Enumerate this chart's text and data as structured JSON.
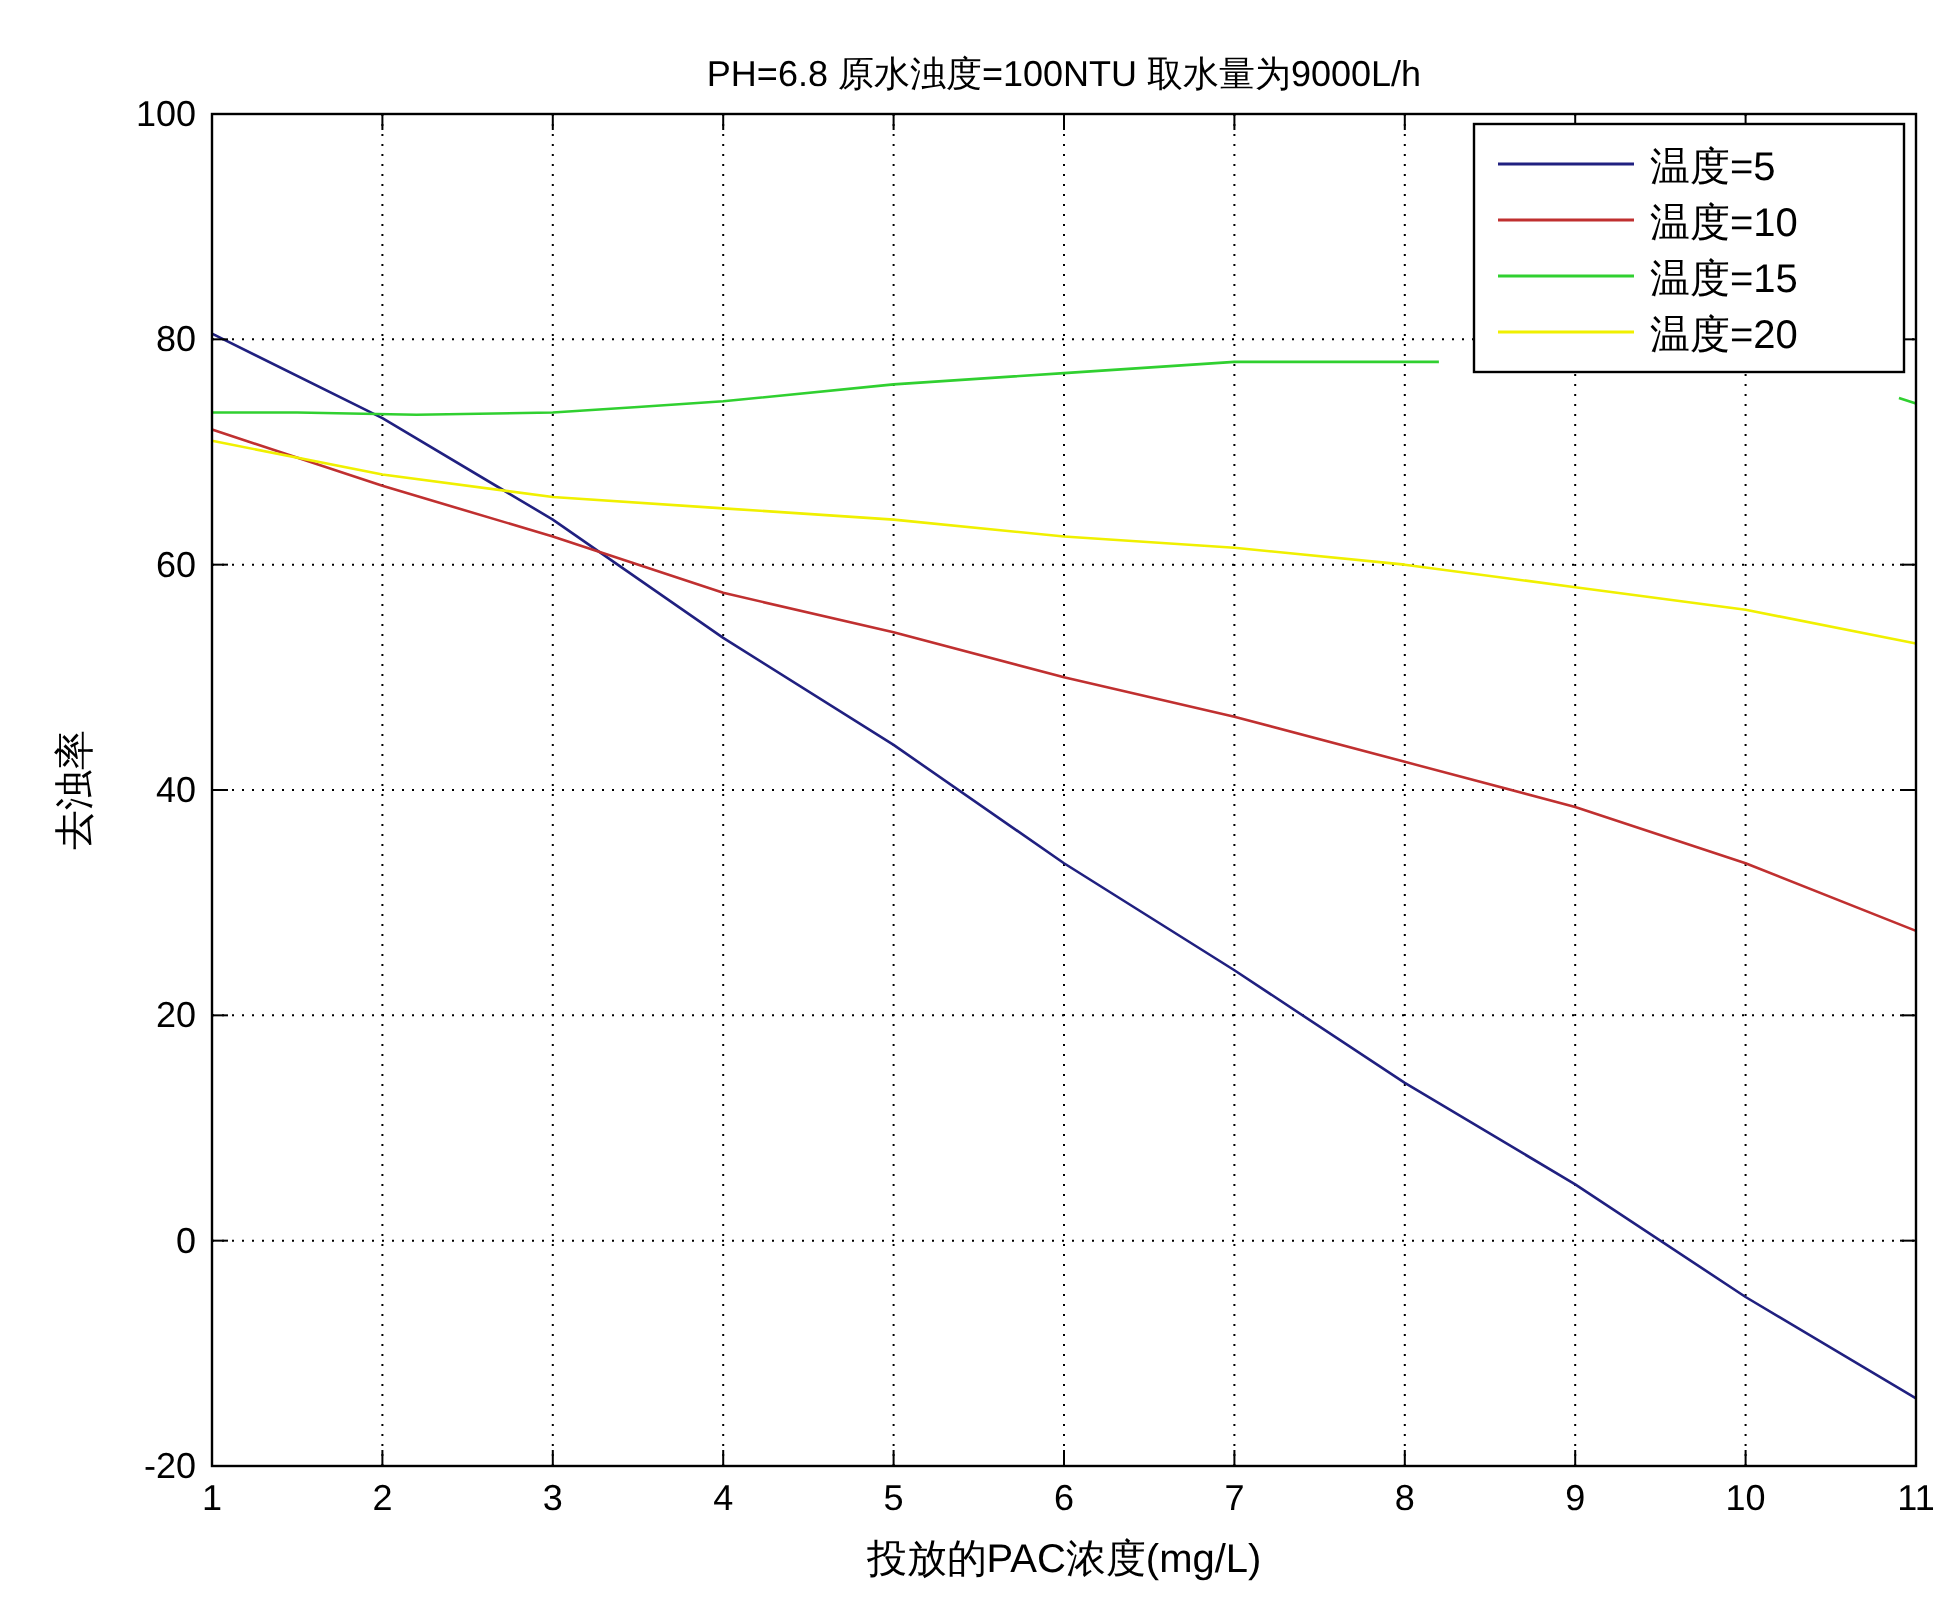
{
  "chart_data": {
    "type": "line",
    "title": "PH=6.8  原水浊度=100NTU  取水量为9000L/h",
    "xlabel": "投放的PAC浓度(mg/L)",
    "ylabel": "去浊率",
    "x": [
      1,
      2,
      3,
      4,
      5,
      6,
      7,
      8,
      9,
      10,
      11
    ],
    "xlim": [
      1,
      11
    ],
    "xticks": [
      1,
      2,
      3,
      4,
      5,
      6,
      7,
      8,
      9,
      10,
      11
    ],
    "ylim": [
      -20,
      100
    ],
    "yticks": [
      -20,
      0,
      20,
      40,
      60,
      80,
      100
    ],
    "grid": true,
    "legend": "top right",
    "line_style": "solid",
    "marker": "none",
    "series": [
      {
        "name": "温度=5",
        "color": "#202080",
        "values": [
          80.5,
          73,
          64,
          53.5,
          44,
          33.5,
          24,
          14,
          5,
          -5,
          -14
        ]
      },
      {
        "name": "温度=10",
        "color": "#c03030",
        "values": [
          72,
          67,
          62.5,
          57.5,
          54,
          50,
          46.5,
          42.5,
          38.5,
          33.5,
          27.5
        ]
      },
      {
        "name": "温度=15",
        "color": "#30d030",
        "x": [
          1,
          1.5,
          2.2,
          3,
          3.5,
          4,
          5,
          6,
          7,
          8,
          8.2,
          9.6,
          10.9,
          11
        ],
        "values": [
          73.5,
          73.5,
          73.3,
          73.5,
          74,
          74.5,
          76,
          77,
          78,
          78,
          78,
          null,
          74.8,
          74.3
        ]
      },
      {
        "name": "温度=20",
        "color": "#f0f000",
        "values": [
          71,
          68,
          66,
          65,
          64,
          62.5,
          61.5,
          60,
          58,
          56,
          53
        ]
      }
    ]
  }
}
